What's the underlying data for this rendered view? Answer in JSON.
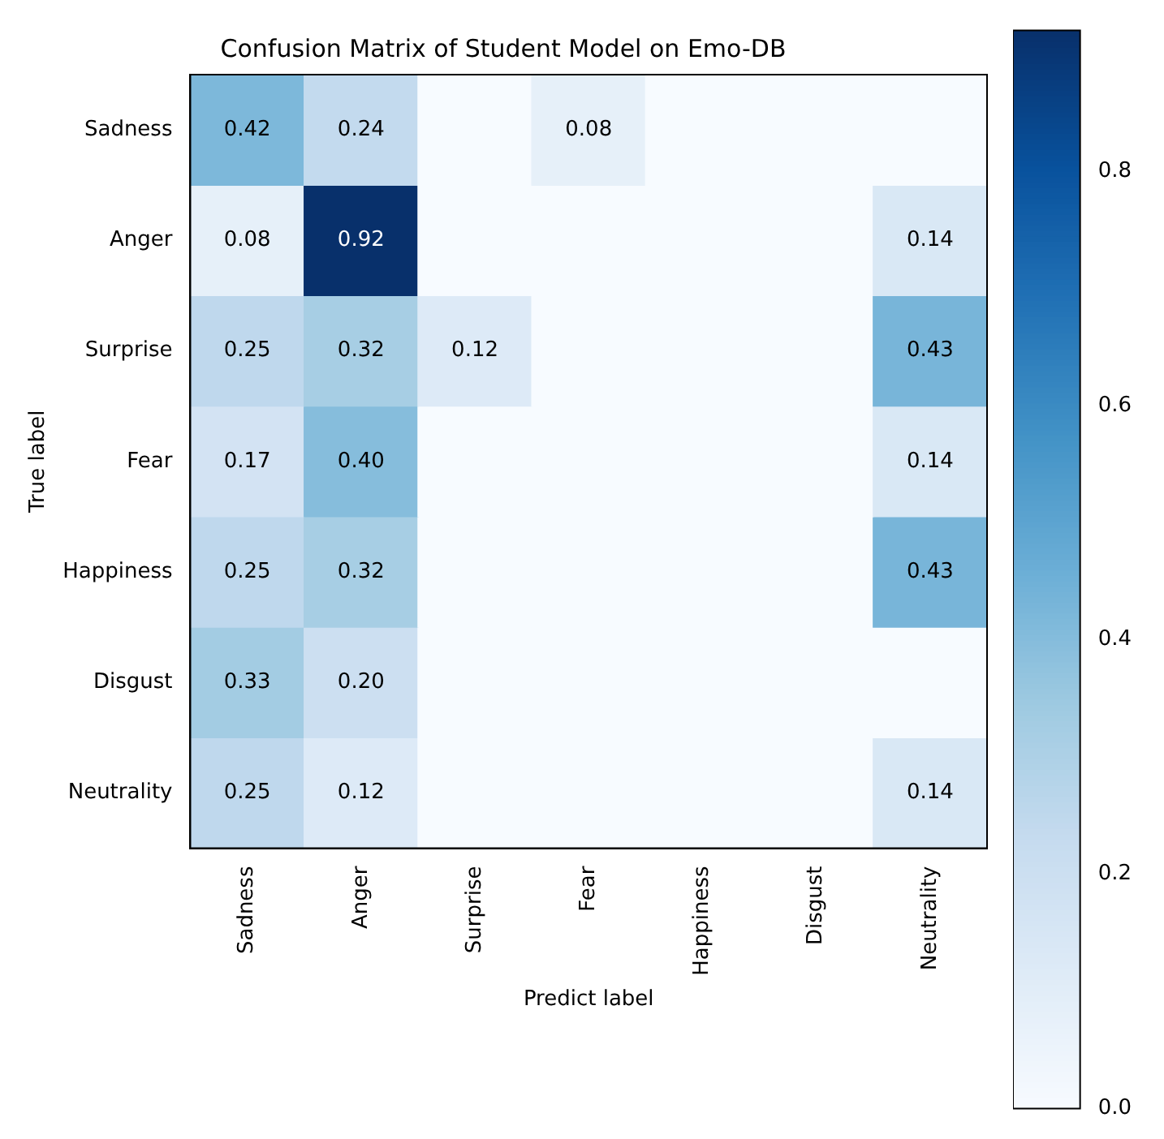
{
  "chart_data": {
    "type": "heatmap",
    "title": "Confusion Matrix of Student Model on Emo-DB",
    "xlabel": "Predict label",
    "ylabel": "True label",
    "categories": [
      "Sadness",
      "Anger",
      "Surprise",
      "Fear",
      "Happiness",
      "Disgust",
      "Neutrality"
    ],
    "y_categories": [
      "Sadness",
      "Anger",
      "Surprise",
      "Fear",
      "Happiness",
      "Disgust",
      "Neutrality"
    ],
    "cells": [
      [
        0.42,
        0.24,
        0,
        0.08,
        0,
        0,
        0
      ],
      [
        0.08,
        0.92,
        0,
        0,
        0,
        0,
        0.14
      ],
      [
        0.25,
        0.32,
        0.12,
        0,
        0,
        0,
        0.43
      ],
      [
        0.17,
        0.4,
        0,
        0,
        0,
        0,
        0.14
      ],
      [
        0.25,
        0.32,
        0,
        0,
        0,
        0,
        0.43
      ],
      [
        0.33,
        0.2,
        0,
        0,
        0,
        0,
        0
      ],
      [
        0.25,
        0.12,
        0,
        0,
        0,
        0,
        0.14
      ]
    ],
    "cell_labels": [
      [
        "0.42",
        "0.24",
        null,
        "0.08",
        null,
        null,
        null
      ],
      [
        "0.08",
        "0.92",
        null,
        null,
        null,
        null,
        "0.14"
      ],
      [
        "0.25",
        "0.32",
        "0.12",
        null,
        null,
        null,
        "0.43"
      ],
      [
        "0.17",
        "0.40",
        null,
        null,
        null,
        null,
        "0.14"
      ],
      [
        "0.25",
        "0.32",
        null,
        null,
        null,
        null,
        "0.43"
      ],
      [
        "0.33",
        "0.20",
        null,
        null,
        null,
        null,
        null
      ],
      [
        "0.25",
        "0.12",
        null,
        null,
        null,
        null,
        "0.14"
      ]
    ],
    "clim": [
      0,
      0.92
    ],
    "cticks": [
      {
        "value": 0,
        "label": "0.0"
      },
      0.2,
      0.4,
      0.6,
      0.8
    ]
  }
}
